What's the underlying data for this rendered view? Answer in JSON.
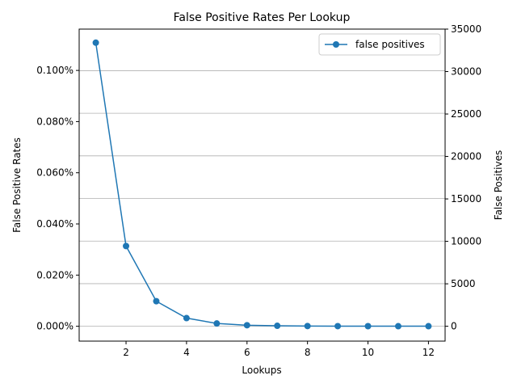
{
  "chart_data": {
    "type": "line",
    "title": "False Positive Rates Per Lookup",
    "xlabel": "Lookups",
    "ylabel_left": "False Positive Rates",
    "ylabel_right": "False Positives",
    "x": [
      1,
      2,
      3,
      4,
      5,
      6,
      7,
      8,
      9,
      10,
      11,
      12
    ],
    "series": [
      {
        "name": "false positives",
        "color": "#1f77b4",
        "marker": "circle",
        "values": [
          33400,
          9450,
          2950,
          960,
          330,
          120,
          55,
          28,
          15,
          10,
          8,
          6
        ]
      }
    ],
    "xlim": [
      0.45,
      12.55
    ],
    "ylim_right": [
      -1750,
      35000
    ],
    "xticks": [
      2,
      4,
      6,
      8,
      10,
      12
    ],
    "yticks_left": [
      "0.000%",
      "0.020%",
      "0.040%",
      "0.060%",
      "0.080%",
      "0.100%"
    ],
    "yticks_right": [
      "0",
      "5000",
      "10000",
      "15000",
      "20000",
      "25000",
      "30000",
      "35000"
    ],
    "grid": "horizontal",
    "legend_position": "top-right"
  }
}
